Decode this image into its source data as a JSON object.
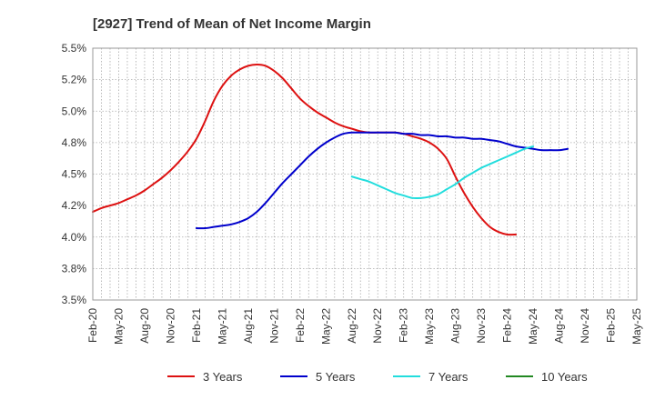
{
  "chart_data": {
    "type": "line",
    "title": "[2927]  Trend of Mean of Net Income Margin",
    "xlabel": "",
    "ylabel": "",
    "x_ticks": [
      "Feb-20",
      "May-20",
      "Aug-20",
      "Nov-20",
      "Feb-21",
      "May-21",
      "Aug-21",
      "Nov-21",
      "Feb-22",
      "May-22",
      "Aug-22",
      "Nov-22",
      "Feb-23",
      "May-23",
      "Aug-23",
      "Nov-23",
      "Feb-24",
      "May-24",
      "Aug-24",
      "Nov-24",
      "Feb-25",
      "May-25"
    ],
    "y_ticks": [
      "3.5%",
      "3.8%",
      "4.0%",
      "4.2%",
      "4.5%",
      "4.8%",
      "5.0%",
      "5.2%",
      "5.5%"
    ],
    "ylim": [
      3.5,
      5.5
    ],
    "grid": true,
    "legend_position": "bottom",
    "series": [
      {
        "name": "3 Years",
        "color": "#dd1111",
        "start_index": 0,
        "values": [
          4.2,
          4.23,
          4.25,
          4.27,
          4.3,
          4.33,
          4.37,
          4.42,
          4.47,
          4.53,
          4.6,
          4.68,
          4.78,
          4.92,
          5.08,
          5.2,
          5.28,
          5.33,
          5.36,
          5.37,
          5.36,
          5.32,
          5.26,
          5.18,
          5.1,
          5.04,
          4.99,
          4.95,
          4.91,
          4.88,
          4.86,
          4.84,
          4.83,
          4.83,
          4.83,
          4.83,
          4.82,
          4.8,
          4.78,
          4.75,
          4.7,
          4.62,
          4.48,
          4.35,
          4.24,
          4.15,
          4.08,
          4.04,
          4.02,
          4.02
        ]
      },
      {
        "name": "5 Years",
        "color": "#0000cc",
        "start_index": 12,
        "values": [
          4.07,
          4.07,
          4.08,
          4.09,
          4.1,
          4.12,
          4.15,
          4.2,
          4.27,
          4.35,
          4.43,
          4.5,
          4.57,
          4.64,
          4.7,
          4.75,
          4.79,
          4.82,
          4.83,
          4.83,
          4.83,
          4.83,
          4.83,
          4.83,
          4.82,
          4.82,
          4.81,
          4.81,
          4.8,
          4.8,
          4.79,
          4.79,
          4.78,
          4.78,
          4.77,
          4.76,
          4.74,
          4.72,
          4.71,
          4.7,
          4.69,
          4.69,
          4.69,
          4.7
        ]
      },
      {
        "name": "7 Years",
        "color": "#22dddd",
        "start_index": 30,
        "values": [
          4.48,
          4.46,
          4.44,
          4.41,
          4.38,
          4.35,
          4.33,
          4.31,
          4.31,
          4.32,
          4.34,
          4.38,
          4.42,
          4.47,
          4.51,
          4.55,
          4.58,
          4.61,
          4.64,
          4.67,
          4.7,
          4.72
        ]
      },
      {
        "name": "10 Years",
        "color": "#228822",
        "start_index": 0,
        "values": []
      }
    ]
  }
}
